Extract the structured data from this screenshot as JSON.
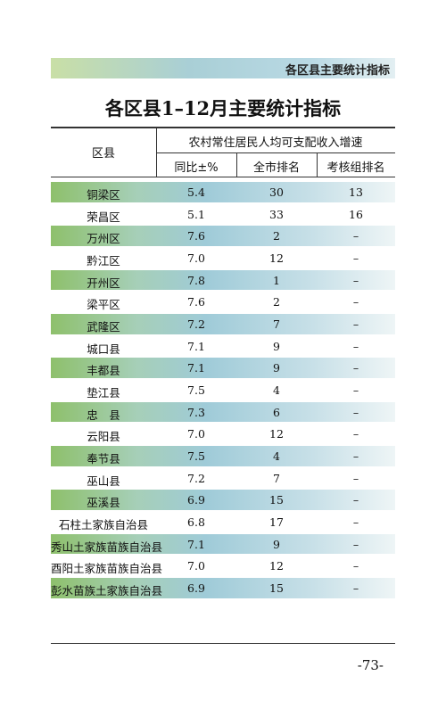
{
  "header": {
    "section": "各区县主要统计指标"
  },
  "title": "各区县1–12月主要统计指标",
  "table": {
    "columns": {
      "region": "区县",
      "group": "农村常住居民人均可支配收入增速",
      "sub": [
        "同比±%",
        "全市排名",
        "考核组排名"
      ]
    },
    "rows": [
      [
        "铜梁区",
        "5.4",
        "30",
        "13"
      ],
      [
        "荣昌区",
        "5.1",
        "33",
        "16"
      ],
      [
        "万州区",
        "7.6",
        "2",
        "–"
      ],
      [
        "黔江区",
        "7.0",
        "12",
        "–"
      ],
      [
        "开州区",
        "7.8",
        "1",
        "–"
      ],
      [
        "梁平区",
        "7.6",
        "2",
        "–"
      ],
      [
        "武隆区",
        "7.2",
        "7",
        "–"
      ],
      [
        "城口县",
        "7.1",
        "9",
        "–"
      ],
      [
        "丰都县",
        "7.1",
        "9",
        "–"
      ],
      [
        "垫江县",
        "7.5",
        "4",
        "–"
      ],
      [
        "忠　县",
        "7.3",
        "6",
        "–"
      ],
      [
        "云阳县",
        "7.0",
        "12",
        "–"
      ],
      [
        "奉节县",
        "7.5",
        "4",
        "–"
      ],
      [
        "巫山县",
        "7.2",
        "7",
        "–"
      ],
      [
        "巫溪县",
        "6.9",
        "15",
        "–"
      ],
      [
        "石柱土家族自治县",
        "6.8",
        "17",
        "–"
      ],
      [
        "秀山土家族苗族自治县",
        "7.1",
        "9",
        "–"
      ],
      [
        "酉阳土家族苗族自治县",
        "7.0",
        "12",
        "–"
      ],
      [
        "彭水苗族土家族自治县",
        "6.9",
        "15",
        "–"
      ]
    ]
  },
  "page_number": "-73-"
}
